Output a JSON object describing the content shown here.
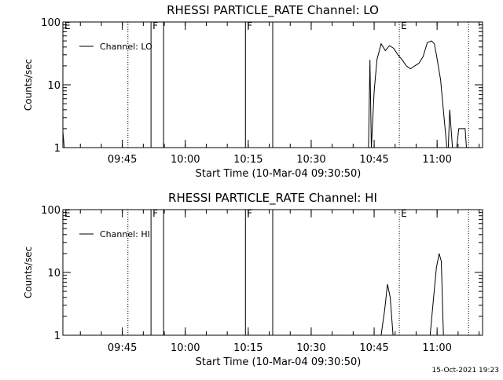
{
  "stamp": "15-Oct-2021 19:23",
  "chart_data": [
    {
      "type": "line",
      "title": "RHESSI PARTICLE_RATE Channel: LO",
      "xlabel": "Start Time (10-Mar-04 09:30:50)",
      "ylabel": "Counts/sec",
      "y_scale": "log",
      "ylim": [
        1,
        100
      ],
      "xlim": [
        "09:30:50",
        "11:10:50"
      ],
      "x_ticks": [
        "09:45",
        "10:00",
        "10:15",
        "10:30",
        "10:45",
        "11:00"
      ],
      "y_ticks": [
        "1",
        "10",
        "100"
      ],
      "legend": {
        "position": "top-left",
        "entries": [
          "Channel: LO"
        ]
      },
      "series": [
        {
          "name": "Channel: LO",
          "x": [
            "09:30:50",
            "09:31:10",
            "10:43:40",
            "10:44:00",
            "10:44:20",
            "10:45:00",
            "10:45:40",
            "10:46:40",
            "10:47:40",
            "10:48:40",
            "10:49:40",
            "10:50:40",
            "10:51:40",
            "10:52:40",
            "10:53:40",
            "10:54:40",
            "10:55:40",
            "10:56:40",
            "10:57:40",
            "10:58:40",
            "10:59:20",
            "10:59:50",
            "11:00:50",
            "11:01:40",
            "11:02:20",
            "11:02:40",
            "11:03:00",
            "11:03:40",
            "11:04:40",
            "11:05:10",
            "11:05:30",
            "11:06:40",
            "11:07:00"
          ],
          "y": [
            1.8,
            1,
            1,
            25,
            1,
            8,
            25,
            45,
            35,
            42,
            38,
            30,
            25,
            20,
            18,
            20,
            22,
            28,
            47,
            50,
            45,
            30,
            12,
            3,
            1,
            1,
            4,
            1,
            1,
            2,
            2,
            2,
            1
          ]
        }
      ],
      "markers": [
        {
          "label": "E",
          "time": "09:30:50",
          "style": "dotted"
        },
        {
          "label": "",
          "time": "09:46:20",
          "style": "dotted"
        },
        {
          "label": "F",
          "time": "09:51:50",
          "style": "solid"
        },
        {
          "label": "",
          "time": "09:54:50",
          "style": "solid"
        },
        {
          "label": "F",
          "time": "10:14:20",
          "style": "solid"
        },
        {
          "label": "",
          "time": "10:20:50",
          "style": "solid"
        },
        {
          "label": "E",
          "time": "10:51:00",
          "style": "dotted"
        },
        {
          "label": "",
          "time": "11:07:30",
          "style": "dotted"
        }
      ]
    },
    {
      "type": "line",
      "title": "RHESSI PARTICLE_RATE Channel: HI",
      "xlabel": "Start Time (10-Mar-04 09:30:50)",
      "ylabel": "Counts/sec",
      "y_scale": "log",
      "ylim": [
        1,
        100
      ],
      "xlim": [
        "09:30:50",
        "11:10:50"
      ],
      "x_ticks": [
        "09:45",
        "10:00",
        "10:15",
        "10:30",
        "10:45",
        "11:00"
      ],
      "y_ticks": [
        "1",
        "10",
        "100"
      ],
      "legend": {
        "position": "top-left",
        "entries": [
          "Channel: HI"
        ]
      },
      "series": [
        {
          "name": "Channel: HI",
          "x": [
            "10:46:40",
            "10:47:30",
            "10:48:10",
            "10:48:50",
            "10:49:30",
            "10:58:20",
            "10:59:10",
            "10:59:50",
            "11:00:30",
            "11:01:00",
            "11:01:30"
          ],
          "y": [
            1,
            2.5,
            6.5,
            4,
            1,
            1,
            4,
            12,
            20,
            15,
            1
          ]
        }
      ],
      "markers": [
        {
          "label": "E",
          "time": "09:30:50",
          "style": "dotted"
        },
        {
          "label": "",
          "time": "09:46:20",
          "style": "dotted"
        },
        {
          "label": "F",
          "time": "09:51:50",
          "style": "solid"
        },
        {
          "label": "",
          "time": "09:54:50",
          "style": "solid"
        },
        {
          "label": "F",
          "time": "10:14:20",
          "style": "solid"
        },
        {
          "label": "",
          "time": "10:20:50",
          "style": "solid"
        },
        {
          "label": "E",
          "time": "10:51:00",
          "style": "dotted"
        },
        {
          "label": "",
          "time": "11:07:30",
          "style": "dotted"
        }
      ]
    }
  ]
}
